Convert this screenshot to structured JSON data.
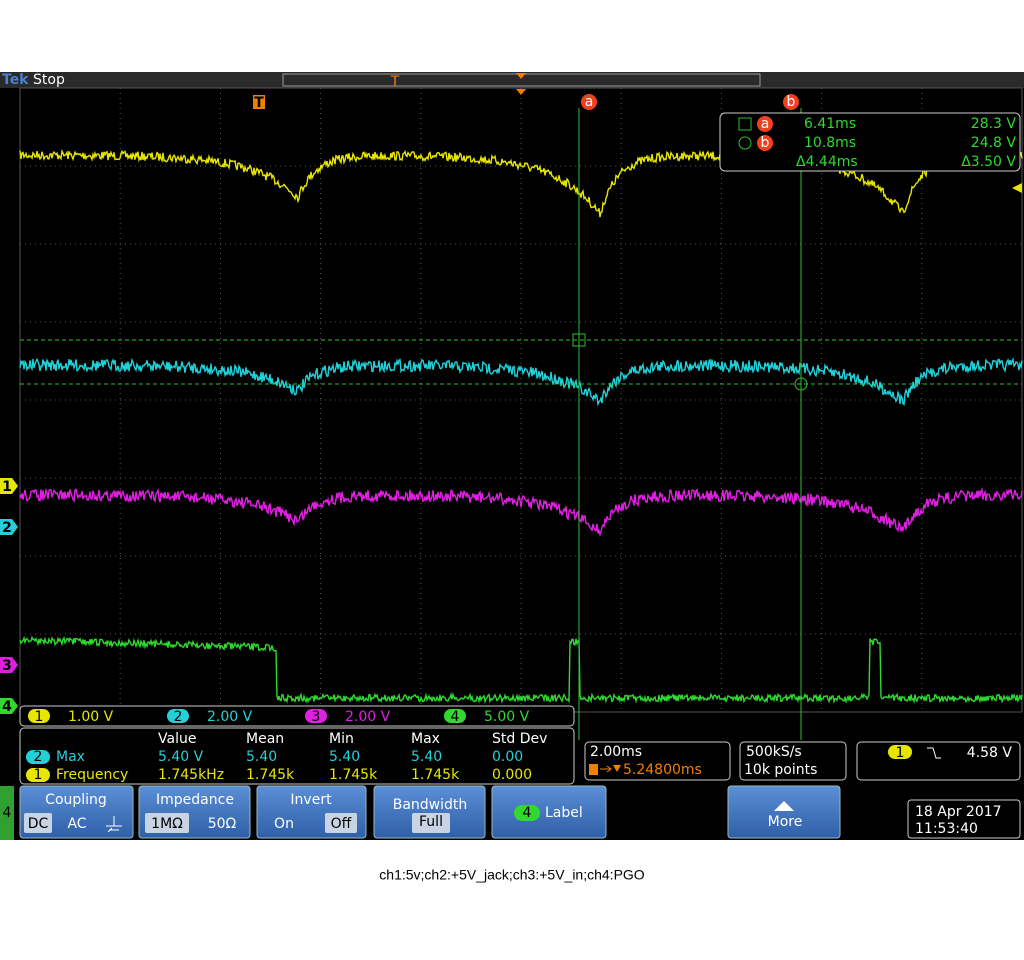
{
  "header": {
    "brand": "Tek",
    "status": "Stop"
  },
  "markers": {
    "trigger": "T",
    "cursor_a": "a",
    "cursor_b": "b"
  },
  "cursor_readout": [
    {
      "label": "a",
      "time": "6.41ms",
      "value": "28.3 V"
    },
    {
      "label": "b",
      "time": "10.8ms",
      "value": "24.8 V"
    },
    {
      "time": "Δ4.44ms",
      "value": "Δ3.50 V"
    }
  ],
  "channel_markers": [
    "1",
    "2",
    "3",
    "4"
  ],
  "channel_scales": [
    {
      "channel": "1",
      "scale": "1.00 V"
    },
    {
      "channel": "2",
      "scale": "2.00 V"
    },
    {
      "channel": "3",
      "scale": "2.00 V"
    },
    {
      "channel": "4",
      "scale": "5.00 V"
    }
  ],
  "measurements": {
    "headers": [
      "Value",
      "Mean",
      "Min",
      "Max",
      "Std Dev"
    ],
    "rows": [
      {
        "channel": "2",
        "name": "Max",
        "values": [
          "5.40 V",
          "5.40",
          "5.40",
          "5.40",
          "0.00"
        ]
      },
      {
        "channel": "1",
        "name": "Frequency",
        "values": [
          "1.745kHz",
          "1.745k",
          "1.745k",
          "1.745k",
          "0.000"
        ]
      }
    ]
  },
  "horizontal": {
    "scale": "2.00ms",
    "position": "5.24800ms"
  },
  "acquisition": {
    "rate": "500kS/s",
    "points": "10k points"
  },
  "trigger": {
    "channel": "1",
    "level": "4.58 V"
  },
  "menu": {
    "side": "4",
    "coupling": {
      "title": "Coupling",
      "options": [
        "DC",
        "AC"
      ]
    },
    "impedance": {
      "title": "Impedance",
      "options": [
        "1MΩ",
        "50Ω"
      ]
    },
    "invert": {
      "title": "Invert",
      "options": [
        "On",
        "Off"
      ]
    },
    "bandwidth": {
      "title": "Bandwidth",
      "value": "Full"
    },
    "label": {
      "channel": "4",
      "title": "Label"
    },
    "more": "More"
  },
  "datetime": {
    "date": "18 Apr 2017",
    "time": "11:53:40"
  },
  "caption": "ch1:5v;ch2:+5V_jack;ch3:+5V_in;ch4:PGO"
}
